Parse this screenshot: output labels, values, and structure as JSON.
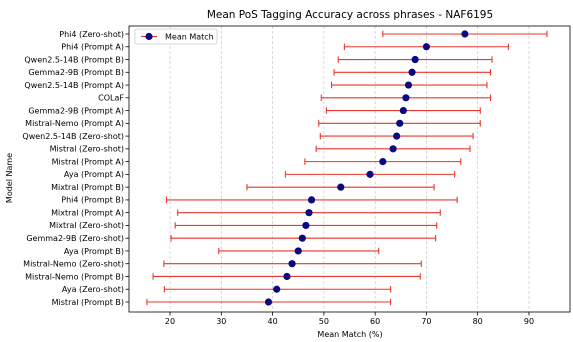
{
  "chart_data": {
    "type": "errorbar-dot",
    "orientation": "horizontal",
    "title": "Mean PoS Tagging Accuracy across phrases - NAF6195",
    "xlabel": "Mean Match (%)",
    "ylabel": "Model Name",
    "xlim": [
      12,
      98
    ],
    "xticks": [
      20,
      30,
      40,
      50,
      60,
      70,
      80,
      90
    ],
    "grid": "x-dashed",
    "legend": {
      "placement": "top-left",
      "entries": [
        "Mean Match"
      ]
    },
    "colors": {
      "marker": "#0a0a80",
      "error_bar": "#e8372c",
      "grid": "#c8c8c8"
    },
    "categories": [
      "Phi4 (Zero-shot)",
      "Phi4 (Prompt A)",
      "Qwen2.5-14B (Prompt B)",
      "Gemma2-9B (Prompt B)",
      "Qwen2.5-14B (Prompt A)",
      "COLaF",
      "Gemma2-9B (Prompt A)",
      "Mistral-Nemo (Prompt A)",
      "Qwen2.5-14B (Zero-shot)",
      "Mistral (Zero-shot)",
      "Mistral (Prompt A)",
      "Aya (Prompt A)",
      "Mixtral (Prompt B)",
      "Phi4 (Prompt B)",
      "Mixtral (Prompt A)",
      "Mixtral (Zero-shot)",
      "Gemma2-9B (Zero-shot)",
      "Aya (Prompt B)",
      "Mistral-Nemo (Zero-shot)",
      "Mistral-Nemo (Prompt B)",
      "Aya (Zero-shot)",
      "Mistral (Prompt B)"
    ],
    "series": [
      {
        "name": "Mean Match",
        "values": [
          77.5,
          70.0,
          67.8,
          67.2,
          66.5,
          66.0,
          65.5,
          64.8,
          64.2,
          63.5,
          61.5,
          59.0,
          53.3,
          47.6,
          47.1,
          46.5,
          45.8,
          45.0,
          43.8,
          42.8,
          40.8,
          39.2
        ],
        "lower": [
          61.5,
          54.0,
          52.8,
          52.0,
          51.5,
          49.5,
          50.5,
          49.0,
          49.3,
          48.5,
          46.3,
          42.5,
          35.0,
          19.3,
          21.5,
          21.0,
          20.2,
          29.5,
          18.8,
          16.7,
          18.9,
          15.5
        ],
        "upper": [
          93.5,
          86.0,
          82.8,
          82.5,
          81.8,
          82.5,
          80.5,
          80.5,
          79.1,
          78.5,
          76.7,
          75.5,
          71.5,
          76.0,
          72.7,
          72.0,
          71.8,
          60.7,
          69.0,
          68.8,
          63.0,
          63.0
        ]
      }
    ]
  }
}
